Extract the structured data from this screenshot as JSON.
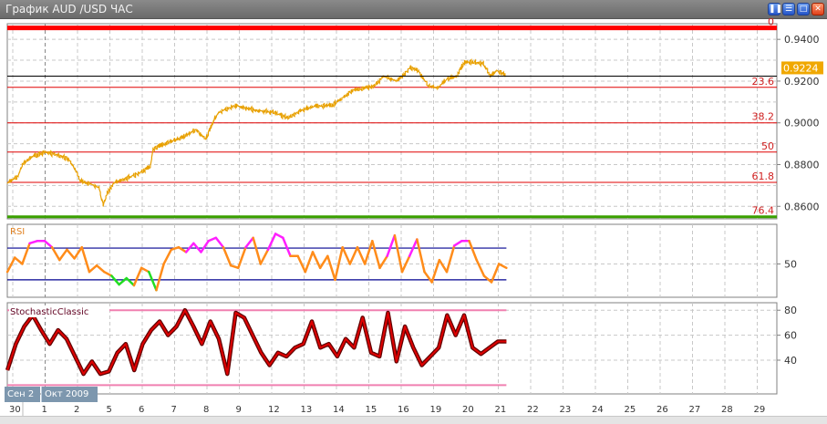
{
  "window": {
    "title": "График AUD /USD  ЧАС",
    "buttons": [
      "pause",
      "tile",
      "maximize",
      "close"
    ]
  },
  "colors": {
    "price": "#e8a000",
    "fib": "#e00000",
    "fib0": "#ff0000",
    "fib764": "#3aa000",
    "rsi": "#ff8c1a",
    "rsi_over": "#ff20ff",
    "rsi_under": "#22dd22",
    "rsi_levels": "#000090",
    "stoch": "#e00000",
    "stoch_outline": "#600000",
    "stoch_levels": "#f080b0",
    "last_price_bg": "#f0a800"
  },
  "date_labels": {
    "month_prev": "Сен 2",
    "month_current": "Окт 2009"
  },
  "chart_data": [
    {
      "type": "line",
      "title": "",
      "ylabel": "",
      "ylim": [
        0.854,
        0.9475
      ],
      "yticks": [
        "0.9400",
        "0.9200",
        "0.9000",
        "0.8800",
        "0.8600"
      ],
      "xticks": [
        "30",
        "1",
        "2",
        "5",
        "6",
        "7",
        "8",
        "9",
        "12",
        "13",
        "14",
        "15",
        "16",
        "19",
        "20",
        "21",
        "22",
        "23",
        "24",
        "25",
        "26",
        "27",
        "28",
        "29"
      ],
      "last_price": "0.9224",
      "fibonacci": {
        "levels": [
          {
            "label": "0",
            "price": 0.9455
          },
          {
            "label": "23.6",
            "price": 0.917
          },
          {
            "label": "38.2",
            "price": 0.9
          },
          {
            "label": "50",
            "price": 0.886
          },
          {
            "label": "61.8",
            "price": 0.8715
          },
          {
            "label": "76.4",
            "price": 0.855
          }
        ]
      },
      "grid": true,
      "points": [
        [
          "09-29 20",
          0.8712
        ],
        [
          "09-30 04",
          0.8744
        ],
        [
          "09-30 07",
          0.88
        ],
        [
          "09-30 14",
          0.8837
        ],
        [
          "10-01 00",
          0.886
        ],
        [
          "10-01 06",
          0.8851
        ],
        [
          "10-01 17",
          0.8828
        ],
        [
          "10-01 22",
          0.8781
        ],
        [
          "10-02 02",
          0.8721
        ],
        [
          "10-02 10",
          0.8707
        ],
        [
          "10-02 16",
          0.8688
        ],
        [
          "10-02 19",
          0.8605
        ],
        [
          "10-02 22",
          0.8665
        ],
        [
          "10-05 03",
          0.8712
        ],
        [
          "10-05 13",
          0.8735
        ],
        [
          "10-05 23",
          0.8763
        ],
        [
          "10-06 06",
          0.8791
        ],
        [
          "10-06 08",
          0.8874
        ],
        [
          "10-06 16",
          0.8898
        ],
        [
          "10-07 06",
          0.893
        ],
        [
          "10-07 16",
          0.8967
        ],
        [
          "10-07 23",
          0.8921
        ],
        [
          "10-08 06",
          0.9023
        ],
        [
          "10-08 09",
          0.9051
        ],
        [
          "10-08 21",
          0.9084
        ],
        [
          "10-09 12",
          0.906
        ],
        [
          "10-12 01",
          0.9051
        ],
        [
          "10-12 12",
          0.9023
        ],
        [
          "10-12 22",
          0.906
        ],
        [
          "10-13 08",
          0.9079
        ],
        [
          "10-13 21",
          0.9084
        ],
        [
          "10-14 04",
          0.9116
        ],
        [
          "10-14 11",
          0.9153
        ],
        [
          "10-15 04",
          0.9177
        ],
        [
          "10-15 11",
          0.9223
        ],
        [
          "10-15 21",
          0.92
        ],
        [
          "10-16 07",
          0.9265
        ],
        [
          "10-16 13",
          0.9247
        ],
        [
          "10-16 20",
          0.9177
        ],
        [
          "10-19 03",
          0.9167
        ],
        [
          "10-19 10",
          0.9209
        ],
        [
          "10-19 17",
          0.9223
        ],
        [
          "10-19 23",
          0.9293
        ],
        [
          "10-20 13",
          0.9284
        ],
        [
          "10-20 18",
          0.9223
        ],
        [
          "10-20 23",
          0.9251
        ],
        [
          "10-21 06",
          0.9224
        ]
      ]
    },
    {
      "type": "line",
      "title": "RSI",
      "ylim": [
        8,
        100
      ],
      "yticks": [
        "50"
      ],
      "levels": [
        70,
        30
      ],
      "x_range": [
        "09-29 20",
        "10-21 06"
      ],
      "values": [
        40,
        58,
        50,
        76,
        79,
        79,
        71,
        55,
        68,
        57,
        71,
        40,
        48,
        40,
        35,
        24,
        32,
        23,
        45,
        40,
        17,
        50,
        68,
        71,
        65,
        76,
        65,
        79,
        83,
        71,
        48,
        45,
        71,
        83,
        50,
        68,
        88,
        83,
        60,
        60,
        40,
        65,
        45,
        60,
        30,
        71,
        50,
        71,
        50,
        79,
        45,
        60,
        86,
        40,
        60,
        81,
        40,
        27,
        55,
        40,
        73,
        79,
        79,
        55,
        35,
        27,
        50,
        45
      ]
    },
    {
      "type": "line",
      "title": "StochasticClassic",
      "ylim": [
        13,
        86
      ],
      "yticks": [
        "80",
        "60",
        "40"
      ],
      "levels": [
        80,
        20
      ],
      "x_range": [
        "09-29 20",
        "10-21 06"
      ],
      "values": [
        32,
        53,
        67,
        76,
        64,
        53,
        64,
        57,
        43,
        29,
        39,
        29,
        31,
        46,
        53,
        32,
        53,
        64,
        71,
        60,
        67,
        80,
        67,
        53,
        71,
        57,
        29,
        78,
        74,
        60,
        46,
        36,
        46,
        43,
        50,
        53,
        71,
        50,
        53,
        43,
        57,
        50,
        74,
        46,
        43,
        78,
        39,
        67,
        50,
        36,
        43,
        50,
        76,
        60,
        76,
        50,
        45,
        50,
        55,
        55
      ]
    }
  ]
}
